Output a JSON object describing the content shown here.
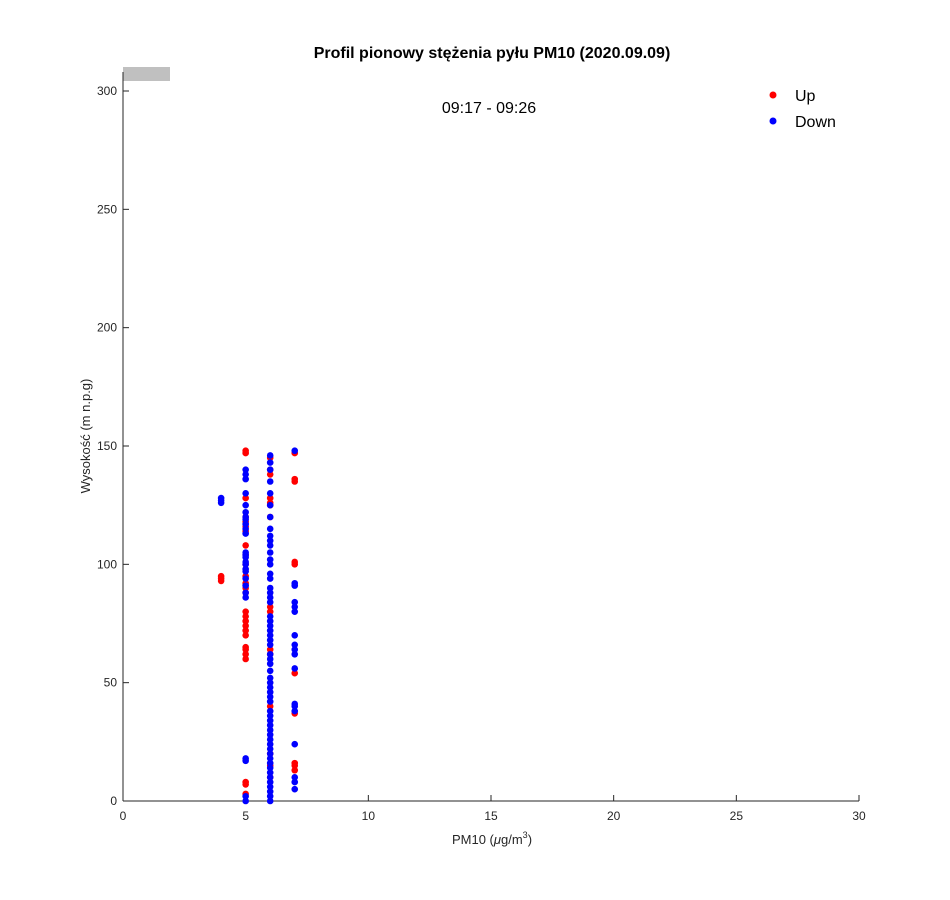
{
  "chart_data": {
    "type": "scatter",
    "title": "Profil pionowy stężenia pyłu PM10 (2020.09.09)",
    "xlabel_main": "PM10 (",
    "xlabel_mu": "μ",
    "xlabel_unit": "g/m",
    "xlabel_exp": "3",
    "xlabel_close": ")",
    "ylabel": "Wysokość (m n.p.g)",
    "annotation": "09:17 - 09:26",
    "xlim": [
      0,
      30
    ],
    "ylim": [
      0,
      300
    ],
    "xticks": [
      0,
      5,
      10,
      15,
      20,
      25,
      30
    ],
    "yticks": [
      0,
      50,
      100,
      150,
      200,
      250,
      300
    ],
    "legend_position": "top-right",
    "colors": {
      "Up": "#ff0000",
      "Down": "#0000ff",
      "wind_bar": "#c0c0c0"
    },
    "series": [
      {
        "name": "Up",
        "x": [
          4,
          4,
          4,
          5,
          5,
          5,
          5,
          5,
          5,
          5,
          5,
          5,
          5,
          5,
          5,
          5,
          5,
          5,
          5,
          5,
          5,
          5,
          5,
          5,
          5,
          5,
          5,
          5,
          5,
          5,
          6,
          6,
          6,
          6,
          6,
          6,
          6,
          6,
          6,
          6,
          6,
          6,
          6,
          6,
          6,
          7,
          7,
          7,
          7,
          7,
          7,
          7,
          7,
          7,
          7
        ],
        "y": [
          93,
          94,
          95,
          3,
          7,
          8,
          60,
          62,
          64,
          65,
          70,
          72,
          74,
          76,
          78,
          80,
          88,
          90,
          92,
          95,
          100,
          104,
          108,
          114,
          116,
          118,
          120,
          128,
          147,
          148,
          10,
          15,
          20,
          40,
          62,
          64,
          80,
          82,
          120,
          125,
          126,
          128,
          138,
          140,
          145,
          13,
          15,
          16,
          37,
          54,
          100,
          101,
          135,
          136,
          147
        ]
      },
      {
        "name": "Down",
        "x": [
          4,
          4,
          4,
          5,
          5,
          5,
          5,
          5,
          5,
          5,
          5,
          5,
          5,
          5,
          5,
          5,
          5,
          5,
          5,
          5,
          5,
          5,
          5,
          5,
          5,
          5,
          5,
          5,
          5,
          6,
          6,
          6,
          6,
          6,
          6,
          6,
          6,
          6,
          6,
          6,
          6,
          6,
          6,
          6,
          6,
          6,
          6,
          6,
          6,
          6,
          6,
          6,
          6,
          6,
          6,
          6,
          6,
          6,
          6,
          6,
          6,
          6,
          6,
          6,
          6,
          6,
          6,
          6,
          6,
          6,
          6,
          6,
          6,
          6,
          6,
          6,
          6,
          6,
          6,
          6,
          6,
          6,
          6,
          6,
          6,
          6,
          7,
          7,
          7,
          7,
          7,
          7,
          7,
          7,
          7,
          7,
          7,
          7,
          7,
          7,
          7,
          7,
          7,
          7
        ],
        "y": [
          126,
          127,
          128,
          0,
          2,
          17,
          18,
          86,
          88,
          91,
          94,
          97,
          98,
          100,
          101,
          103,
          104,
          105,
          113,
          115,
          117,
          119,
          120,
          122,
          125,
          130,
          136,
          138,
          140,
          0,
          2,
          4,
          6,
          8,
          10,
          12,
          14,
          16,
          18,
          20,
          22,
          24,
          26,
          28,
          30,
          32,
          34,
          36,
          38,
          42,
          44,
          46,
          48,
          50,
          52,
          55,
          58,
          60,
          62,
          66,
          68,
          70,
          72,
          74,
          76,
          78,
          84,
          86,
          88,
          90,
          94,
          96,
          100,
          102,
          105,
          108,
          110,
          112,
          115,
          120,
          125,
          130,
          135,
          140,
          143,
          146,
          5,
          8,
          10,
          24,
          38,
          40,
          41,
          56,
          62,
          64,
          66,
          70,
          80,
          82,
          84,
          91,
          92,
          148
        ]
      }
    ],
    "legend": [
      {
        "name": "Up",
        "label": "Up"
      },
      {
        "name": "Down",
        "label": "Down"
      }
    ]
  }
}
